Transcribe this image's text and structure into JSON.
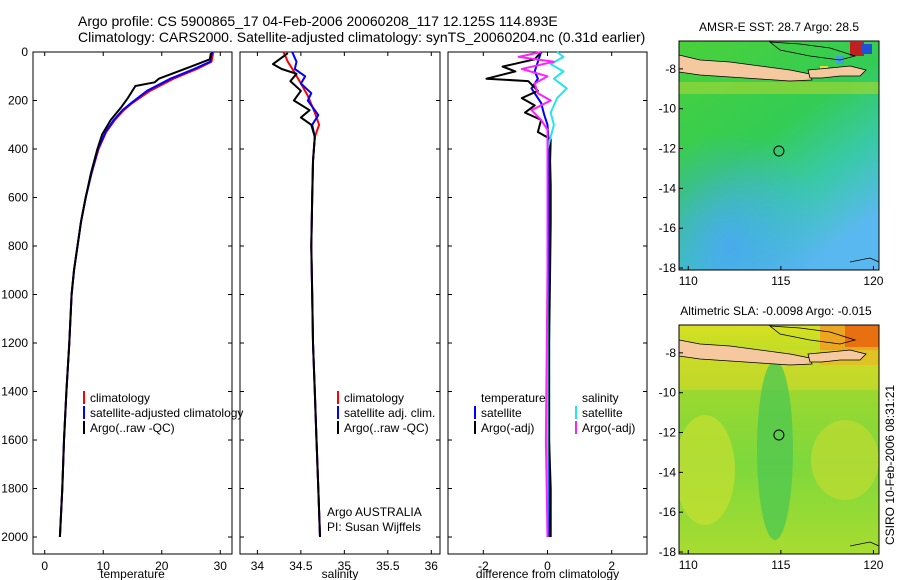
{
  "header": {
    "line1": "Argo profile: CS 5900865_17 04-Feb-2006 20060208_117 12.125S 114.893E",
    "line2": "Climatology: CARS2000. Satellite-adjusted climatology: synTS_20060204.nc (0.31d earlier)"
  },
  "side_label": "CSIRO 10-Feb-2006 08:31:21",
  "colors": {
    "clim": "#ff0000",
    "sat": "#0000ff",
    "argo": "#000000",
    "t_sat": "#0000ff",
    "s_sat": "#22e5f0",
    "s_argo": "#ff22ff",
    "land": "#f5c8a0"
  },
  "chart_data": [
    {
      "type": "line",
      "id": "temperature",
      "xlabel": "temperature",
      "ylabel": "",
      "xlim": [
        -2,
        32
      ],
      "ylim": [
        0,
        2070
      ],
      "xticks": [
        0,
        10,
        20,
        30
      ],
      "yticks": [
        0,
        200,
        400,
        600,
        800,
        1000,
        1200,
        1400,
        1600,
        1800,
        2000
      ],
      "legend": [
        "climatology",
        "satellite-adjusted climatology",
        "Argo(..raw -QC)"
      ],
      "series": [
        {
          "name": "climatology",
          "color": "clim",
          "points": [
            [
              28.8,
              0
            ],
            [
              28.5,
              40
            ],
            [
              26,
              70
            ],
            [
              22,
              110
            ],
            [
              18,
              160
            ],
            [
              15,
              210
            ],
            [
              13.5,
              240
            ],
            [
              12,
              280
            ],
            [
              10.5,
              330
            ],
            [
              9.2,
              400
            ],
            [
              8,
              500
            ],
            [
              7,
              600
            ],
            [
              6.2,
              700
            ],
            [
              5.6,
              800
            ],
            [
              5,
              900
            ],
            [
              4.6,
              1000
            ],
            [
              4.2,
              1200
            ],
            [
              3.7,
              1400
            ],
            [
              3.3,
              1600
            ],
            [
              3,
              1800
            ],
            [
              2.6,
              2000
            ]
          ]
        },
        {
          "name": "satellite-adjusted climatology",
          "color": "sat",
          "points": [
            [
              28.6,
              0
            ],
            [
              28.3,
              40
            ],
            [
              25.5,
              70
            ],
            [
              21.5,
              110
            ],
            [
              17.5,
              160
            ],
            [
              14.8,
              210
            ],
            [
              13.3,
              240
            ],
            [
              11.8,
              280
            ],
            [
              10.4,
              330
            ],
            [
              9.1,
              400
            ],
            [
              8,
              500
            ],
            [
              7,
              600
            ],
            [
              6.2,
              700
            ],
            [
              5.6,
              800
            ],
            [
              5,
              900
            ],
            [
              4.6,
              1000
            ],
            [
              4.2,
              1200
            ],
            [
              3.7,
              1400
            ],
            [
              3.3,
              1600
            ],
            [
              3,
              1800
            ],
            [
              2.6,
              2000
            ]
          ]
        },
        {
          "name": "Argo(..raw -QC)",
          "color": "argo",
          "points": [
            [
              28.4,
              5
            ],
            [
              28.2,
              30
            ],
            [
              25,
              60
            ],
            [
              19.5,
              110
            ],
            [
              18.8,
              125
            ],
            [
              15.5,
              140
            ],
            [
              14.2,
              190
            ],
            [
              13,
              230
            ],
            [
              11.3,
              280
            ],
            [
              9.8,
              340
            ],
            [
              9,
              400
            ],
            [
              7.9,
              500
            ],
            [
              7,
              600
            ],
            [
              6.2,
              700
            ],
            [
              5.6,
              800
            ],
            [
              5,
              900
            ],
            [
              4.6,
              1000
            ],
            [
              4.2,
              1200
            ],
            [
              3.7,
              1400
            ],
            [
              3.3,
              1600
            ],
            [
              3,
              1800
            ],
            [
              2.6,
              2000
            ]
          ]
        }
      ]
    },
    {
      "type": "line",
      "id": "salinity",
      "xlabel": "salinity",
      "xlim": [
        33.8,
        36.1
      ],
      "ylim": [
        0,
        2070
      ],
      "xticks": [
        34,
        34.5,
        35,
        35.5,
        36
      ],
      "yticks": [
        0,
        200,
        400,
        600,
        800,
        1000,
        1200,
        1400,
        1600,
        1800,
        2000
      ],
      "legend": [
        "climatology",
        "satellite adj. clim.",
        "Argo(..raw -QC)"
      ],
      "annotation": [
        "Argo AUSTRALIA",
        "PI: Susan Wijffels"
      ],
      "series": [
        {
          "name": "climatology",
          "color": "clim",
          "points": [
            [
              34.3,
              0
            ],
            [
              34.35,
              40
            ],
            [
              34.42,
              80
            ],
            [
              34.5,
              130
            ],
            [
              34.58,
              180
            ],
            [
              34.66,
              250
            ],
            [
              34.71,
              300
            ],
            [
              34.66,
              350
            ],
            [
              34.64,
              450
            ],
            [
              34.63,
              600
            ],
            [
              34.62,
              800
            ],
            [
              34.63,
              1000
            ],
            [
              34.64,
              1200
            ],
            [
              34.66,
              1400
            ],
            [
              34.68,
              1600
            ],
            [
              34.7,
              1800
            ],
            [
              34.72,
              2000
            ]
          ]
        },
        {
          "name": "satellite adj. clim.",
          "color": "sat",
          "points": [
            [
              34.4,
              0
            ],
            [
              34.45,
              40
            ],
            [
              34.43,
              70
            ],
            [
              34.55,
              100
            ],
            [
              34.5,
              130
            ],
            [
              34.62,
              170
            ],
            [
              34.58,
              200
            ],
            [
              34.7,
              260
            ],
            [
              34.63,
              300
            ],
            [
              34.66,
              350
            ],
            [
              34.64,
              450
            ],
            [
              34.63,
              600
            ],
            [
              34.62,
              800
            ],
            [
              34.63,
              1000
            ],
            [
              34.64,
              1200
            ],
            [
              34.66,
              1400
            ],
            [
              34.68,
              1600
            ],
            [
              34.7,
              1800
            ],
            [
              34.72,
              2000
            ]
          ]
        },
        {
          "name": "Argo(..raw -QC)",
          "color": "argo",
          "points": [
            [
              34.35,
              5
            ],
            [
              34.18,
              50
            ],
            [
              34.28,
              70
            ],
            [
              34.45,
              90
            ],
            [
              34.38,
              120
            ],
            [
              34.5,
              160
            ],
            [
              34.42,
              200
            ],
            [
              34.6,
              240
            ],
            [
              34.5,
              270
            ],
            [
              34.62,
              300
            ],
            [
              34.66,
              350
            ],
            [
              34.64,
              450
            ],
            [
              34.63,
              600
            ],
            [
              34.62,
              800
            ],
            [
              34.63,
              1000
            ],
            [
              34.64,
              1200
            ],
            [
              34.66,
              1400
            ],
            [
              34.68,
              1600
            ],
            [
              34.7,
              1800
            ],
            [
              34.72,
              2000
            ]
          ]
        }
      ]
    },
    {
      "type": "line",
      "id": "difference",
      "xlabel": "difference from climatology",
      "xlim": [
        -3.1,
        3.1
      ],
      "ylim": [
        0,
        2070
      ],
      "xticks": [
        -2,
        0,
        2
      ],
      "yticks": [
        0,
        200,
        400,
        600,
        800,
        1000,
        1200,
        1400,
        1600,
        1800,
        2000
      ],
      "legend_titles": [
        "temperature",
        "salinity"
      ],
      "legend": [
        "satellite",
        "Argo(-adj)",
        "satellite",
        "Argo(-adj)"
      ],
      "series": [
        {
          "name": "temperature satellite",
          "color": "t_sat",
          "points": [
            [
              -0.2,
              0
            ],
            [
              -0.3,
              40
            ],
            [
              -0.4,
              80
            ],
            [
              -0.3,
              110
            ],
            [
              -0.5,
              150
            ],
            [
              -0.2,
              210
            ],
            [
              -0.1,
              260
            ],
            [
              0,
              300
            ],
            [
              0.05,
              400
            ],
            [
              0.05,
              600
            ],
            [
              0.05,
              900
            ],
            [
              0.05,
              2000
            ]
          ]
        },
        {
          "name": "temperature Argo(-adj)",
          "color": "argo",
          "points": [
            [
              -0.2,
              0
            ],
            [
              -0.4,
              30
            ],
            [
              -1.4,
              60
            ],
            [
              -1,
              80
            ],
            [
              -1.9,
              110
            ],
            [
              -0.6,
              120
            ],
            [
              -0.3,
              160
            ],
            [
              -0.8,
              190
            ],
            [
              -0.4,
              220
            ],
            [
              -0.7,
              250
            ],
            [
              -0.2,
              280
            ],
            [
              -0.3,
              330
            ],
            [
              0.1,
              360
            ],
            [
              0.08,
              450
            ],
            [
              0.1,
              550
            ],
            [
              0.1,
              700
            ],
            [
              0.08,
              900
            ],
            [
              0.05,
              1200
            ],
            [
              0.05,
              1600
            ],
            [
              0.1,
              1800
            ],
            [
              0.1,
              2000
            ]
          ]
        },
        {
          "name": "salinity satellite",
          "color": "s_sat",
          "points": [
            [
              0.3,
              0
            ],
            [
              0.5,
              20
            ],
            [
              0.1,
              50
            ],
            [
              0.5,
              80
            ],
            [
              0.2,
              110
            ],
            [
              0.6,
              150
            ],
            [
              0.3,
              190
            ],
            [
              0.1,
              250
            ],
            [
              0.2,
              300
            ],
            [
              0,
              400
            ],
            [
              0,
              600
            ],
            [
              0,
              900
            ],
            [
              0,
              2000
            ]
          ]
        },
        {
          "name": "salinity Argo(-adj)",
          "color": "s_argo",
          "points": [
            [
              -0.2,
              0
            ],
            [
              -0.9,
              20
            ],
            [
              0.2,
              40
            ],
            [
              -0.8,
              70
            ],
            [
              0,
              100
            ],
            [
              -0.4,
              130
            ],
            [
              -0.3,
              170
            ],
            [
              0.1,
              200
            ],
            [
              -0.5,
              240
            ],
            [
              -0.2,
              280
            ],
            [
              0,
              320
            ],
            [
              0,
              400
            ],
            [
              0,
              600
            ],
            [
              0,
              900
            ],
            [
              -0.05,
              1600
            ],
            [
              0,
              2000
            ]
          ]
        }
      ]
    },
    {
      "type": "heatmap",
      "id": "sst",
      "title": "AMSR-E SST: 28.7  Argo: 28.5",
      "xlim": [
        109.5,
        120.3
      ],
      "ylim": [
        -18.1,
        -6.6
      ],
      "xticks": [
        110,
        115,
        120
      ],
      "yticks": [
        -8,
        -10,
        -12,
        -14,
        -16,
        -18
      ],
      "marker": [
        114.893,
        -12.125
      ]
    },
    {
      "type": "heatmap",
      "id": "sla",
      "title": "Altimetric SLA: -0.0098  Argo: -0.015",
      "xlim": [
        109.5,
        120.3
      ],
      "ylim": [
        -18.1,
        -6.6
      ],
      "xticks": [
        110,
        115,
        120
      ],
      "yticks": [
        -8,
        -10,
        -12,
        -14,
        -16,
        -18
      ],
      "marker": [
        114.893,
        -12.125
      ]
    }
  ]
}
